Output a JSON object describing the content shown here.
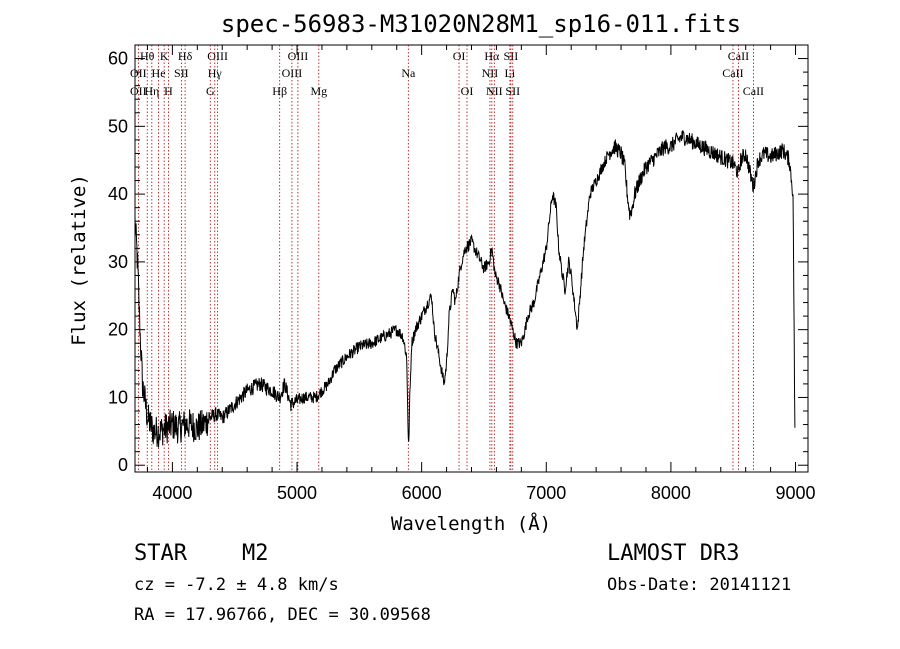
{
  "chart_data": {
    "type": "line",
    "title": "spec-56983-M31020N28M1_sp16-011.fits",
    "xlabel": "Wavelength (Å)",
    "ylabel": "Flux (relative)",
    "xlim": [
      3700,
      9100
    ],
    "ylim": [
      -1,
      62
    ],
    "xticks": [
      4000,
      5000,
      6000,
      7000,
      8000,
      9000
    ],
    "yticks": [
      0,
      10,
      20,
      30,
      40,
      50,
      60
    ],
    "grid": false,
    "colors": {
      "spectrum": "#000000",
      "line_marker": "#b00000"
    },
    "spectrum_anchors": {
      "wavelength": [
        3700,
        3720,
        3740,
        3760,
        3800,
        3850,
        3900,
        3950,
        4000,
        4050,
        4100,
        4150,
        4200,
        4250,
        4300,
        4350,
        4400,
        4450,
        4500,
        4600,
        4700,
        4800,
        4860,
        4900,
        4950,
        5000,
        5050,
        5100,
        5150,
        5200,
        5250,
        5300,
        5400,
        5500,
        5600,
        5700,
        5800,
        5850,
        5880,
        5895,
        5905,
        5920,
        5950,
        6000,
        6050,
        6080,
        6100,
        6150,
        6180,
        6200,
        6220,
        6250,
        6270,
        6300,
        6320,
        6350,
        6400,
        6450,
        6500,
        6540,
        6563,
        6590,
        6620,
        6660,
        6700,
        6730,
        6760,
        6800,
        6830,
        6850,
        6900,
        6950,
        7000,
        7030,
        7050,
        7080,
        7100,
        7130,
        7150,
        7180,
        7200,
        7250,
        7300,
        7350,
        7400,
        7450,
        7500,
        7550,
        7600,
        7630,
        7650,
        7670,
        7690,
        7710,
        7750,
        7800,
        7850,
        7900,
        7950,
        8000,
        8050,
        8100,
        8150,
        8200,
        8250,
        8300,
        8350,
        8400,
        8450,
        8500,
        8542,
        8560,
        8600,
        8662,
        8700,
        8750,
        8800,
        8850,
        8900,
        8950,
        8980,
        8995
      ],
      "flux": [
        36,
        30,
        20,
        12,
        7,
        5,
        5,
        5.5,
        6,
        5.5,
        6,
        6,
        5.5,
        6,
        7,
        7.5,
        7,
        8,
        9,
        11,
        12,
        11,
        10,
        12,
        9,
        9.5,
        10,
        10,
        10,
        11,
        12,
        14,
        16,
        17.5,
        18,
        19,
        20,
        19,
        16,
        2,
        10,
        18,
        20,
        22,
        24,
        25,
        20,
        15,
        12,
        15,
        22,
        26,
        24,
        28,
        30,
        32,
        33,
        31,
        29,
        30,
        32,
        28,
        27,
        24,
        22,
        20,
        18,
        18,
        20,
        22,
        24,
        28,
        32,
        37,
        40,
        38,
        32,
        28,
        26,
        30,
        28,
        20,
        32,
        40,
        42,
        44,
        46,
        47,
        46,
        44,
        40,
        37,
        38,
        40,
        42,
        44,
        45,
        46,
        47,
        47,
        48,
        48.5,
        48,
        47.5,
        47,
        46.5,
        46,
        45.5,
        45,
        44.5,
        43,
        45,
        46,
        41,
        45,
        46,
        45.5,
        46,
        46.5,
        45,
        40,
        5
      ],
      "noise": 0.9
    },
    "line_markers": [
      {
        "label": "Hθ",
        "x": 3798,
        "row": 1
      },
      {
        "label": "OII",
        "x": 3727,
        "row": 2
      },
      {
        "label": "OII",
        "x": 3727,
        "row": 3
      },
      {
        "label": "Hη",
        "x": 3835,
        "row": 3
      },
      {
        "label": "He",
        "x": 3889,
        "row": 2
      },
      {
        "label": "K",
        "x": 3934,
        "row": 1
      },
      {
        "label": "H",
        "x": 3968,
        "row": 3
      },
      {
        "label": "Hδ",
        "x": 4102,
        "row": 1
      },
      {
        "label": "SII",
        "x": 4072,
        "row": 2
      },
      {
        "label": "OIII",
        "x": 4363,
        "row": 1
      },
      {
        "label": "Hγ",
        "x": 4340,
        "row": 2
      },
      {
        "label": "G",
        "x": 4304,
        "row": 3
      },
      {
        "label": "Hβ",
        "x": 4861,
        "row": 3
      },
      {
        "label": "OIII",
        "x": 5007,
        "row": 1
      },
      {
        "label": "OIII",
        "x": 4959,
        "row": 2
      },
      {
        "label": "Mg",
        "x": 5175,
        "row": 3
      },
      {
        "label": "Na",
        "x": 5893,
        "row": 2
      },
      {
        "label": "OI",
        "x": 6300,
        "row": 1
      },
      {
        "label": "OI",
        "x": 6364,
        "row": 3
      },
      {
        "label": "Hα",
        "x": 6563,
        "row": 1
      },
      {
        "label": "SII",
        "x": 6716,
        "row": 1
      },
      {
        "label": "NII",
        "x": 6548,
        "row": 2
      },
      {
        "label": "Li",
        "x": 6708,
        "row": 2
      },
      {
        "label": "NII",
        "x": 6583,
        "row": 3
      },
      {
        "label": "SII",
        "x": 6731,
        "row": 3
      },
      {
        "label": "CaII",
        "x": 8542,
        "row": 1
      },
      {
        "label": "CaII",
        "x": 8498,
        "row": 2
      },
      {
        "label": "CaII",
        "x": 8662,
        "row": 3
      }
    ]
  },
  "info": {
    "class": "STAR",
    "subclass": "M2",
    "survey": "LAMOST DR3",
    "cz": "cz = -7.2 ± 4.8 km/s",
    "obs_date": "Obs-Date: 20141121",
    "coords": "RA =  17.96766, DEC =  30.09568"
  }
}
